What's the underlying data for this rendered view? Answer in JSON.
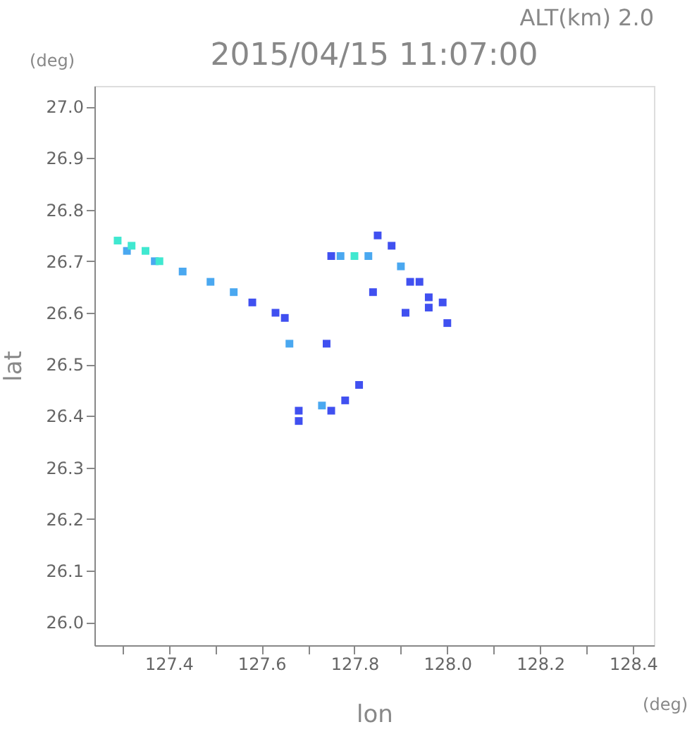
{
  "chart_data": {
    "type": "scatter",
    "title": "2015/04/15 11:07:00",
    "xlabel": "lon",
    "ylabel": "lat",
    "annotations": [
      "ALT(km) 2.0",
      "(deg)",
      "(deg)"
    ],
    "xlim": [
      127.24,
      128.445
    ],
    "ylim": [
      25.955,
      27.04
    ],
    "xticks": [
      {
        "value": 127.3,
        "label": null
      },
      127.4,
      {
        "value": 127.5,
        "label": null
      },
      127.6,
      {
        "value": 127.7,
        "label": null
      },
      127.8,
      {
        "value": 127.9,
        "label": null
      },
      {
        "value": 128.0,
        "label": "128.0"
      },
      {
        "value": 128.1,
        "label": null
      },
      128.2,
      {
        "value": 128.3,
        "label": null
      },
      128.4
    ],
    "yticks": [
      {
        "value": 26.0,
        "label": "26.0"
      },
      26.1,
      26.2,
      26.3,
      26.4,
      26.5,
      26.6,
      26.7,
      26.8,
      26.9,
      {
        "value": 27.0,
        "label": "27.0"
      }
    ],
    "grid": false,
    "legend": false,
    "marker": "square",
    "series": [
      {
        "color": "#4050f0",
        "x": [
          127.58,
          127.63,
          127.65,
          127.85,
          127.88,
          127.92,
          127.94,
          127.96,
          127.91,
          127.96,
          127.99,
          127.75,
          127.84,
          127.75,
          127.78,
          127.68,
          127.68,
          127.81,
          128.0,
          127.74
        ],
        "values": [
          26.62,
          26.6,
          26.59,
          26.75,
          26.73,
          26.66,
          26.66,
          26.63,
          26.6,
          26.61,
          26.62,
          26.71,
          26.64,
          26.41,
          26.43,
          26.41,
          26.39,
          26.46,
          26.58,
          26.54
        ]
      },
      {
        "color": "#4aa8f0",
        "x": [
          127.31,
          127.37,
          127.43,
          127.49,
          127.54,
          127.77,
          127.83,
          127.9,
          127.66,
          127.73
        ],
        "values": [
          26.72,
          26.7,
          26.68,
          26.66,
          26.64,
          26.71,
          26.71,
          26.69,
          26.54,
          26.42
        ]
      },
      {
        "color": "#40e8d0",
        "x": [
          127.29,
          127.32,
          127.35,
          127.38,
          127.8
        ],
        "values": [
          26.74,
          26.73,
          26.72,
          26.7,
          26.71
        ]
      }
    ]
  }
}
